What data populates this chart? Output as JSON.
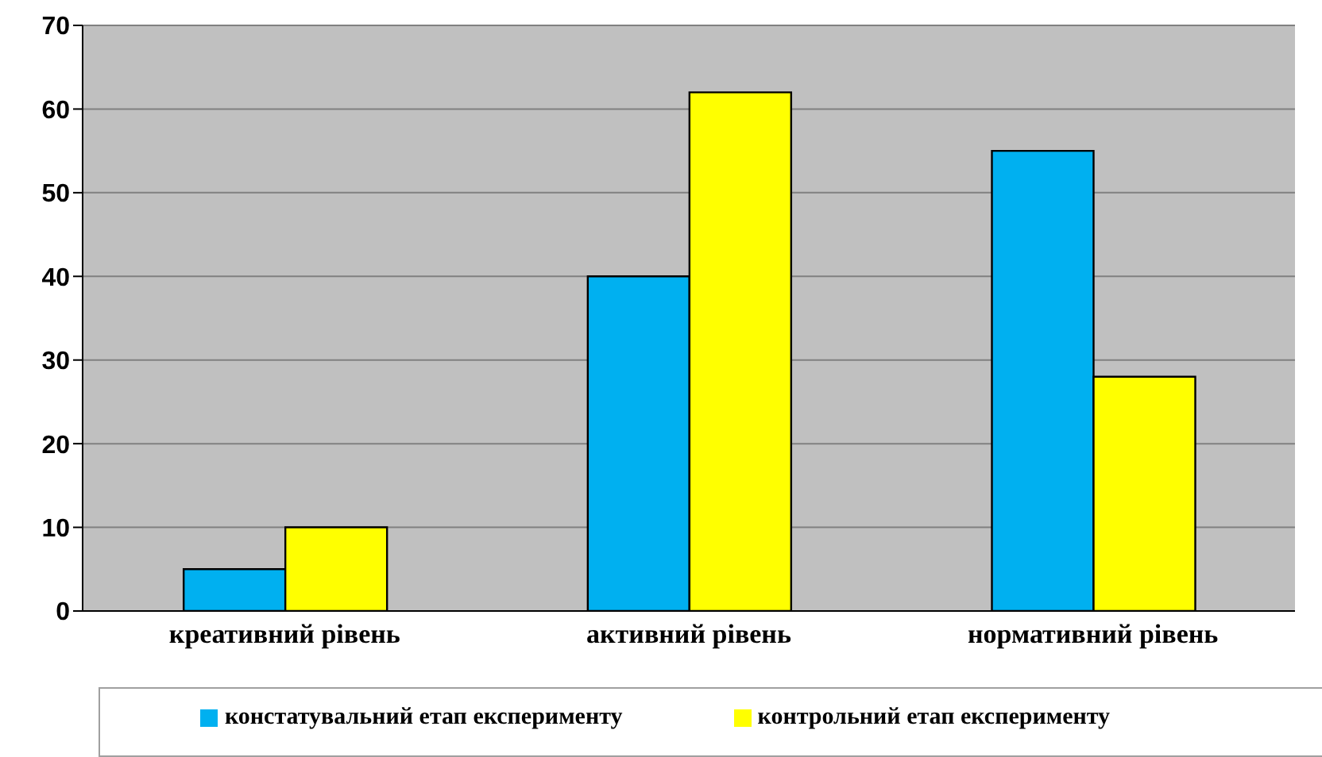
{
  "chart_data": {
    "type": "bar",
    "categories": [
      "креативний рівень",
      "активний рівень",
      "нормативний рівень"
    ],
    "series": [
      {
        "name": "констатувальний етап експерименту",
        "color": "#00b0f0",
        "values": [
          5,
          40,
          55
        ]
      },
      {
        "name": "контрольний етап експерименту",
        "color": "#ffff00",
        "values": [
          10,
          62,
          28
        ]
      }
    ],
    "ylim": [
      0,
      70
    ],
    "yticks": [
      0,
      10,
      20,
      30,
      40,
      50,
      60,
      70
    ],
    "grid": "y",
    "legend": "bottom"
  }
}
